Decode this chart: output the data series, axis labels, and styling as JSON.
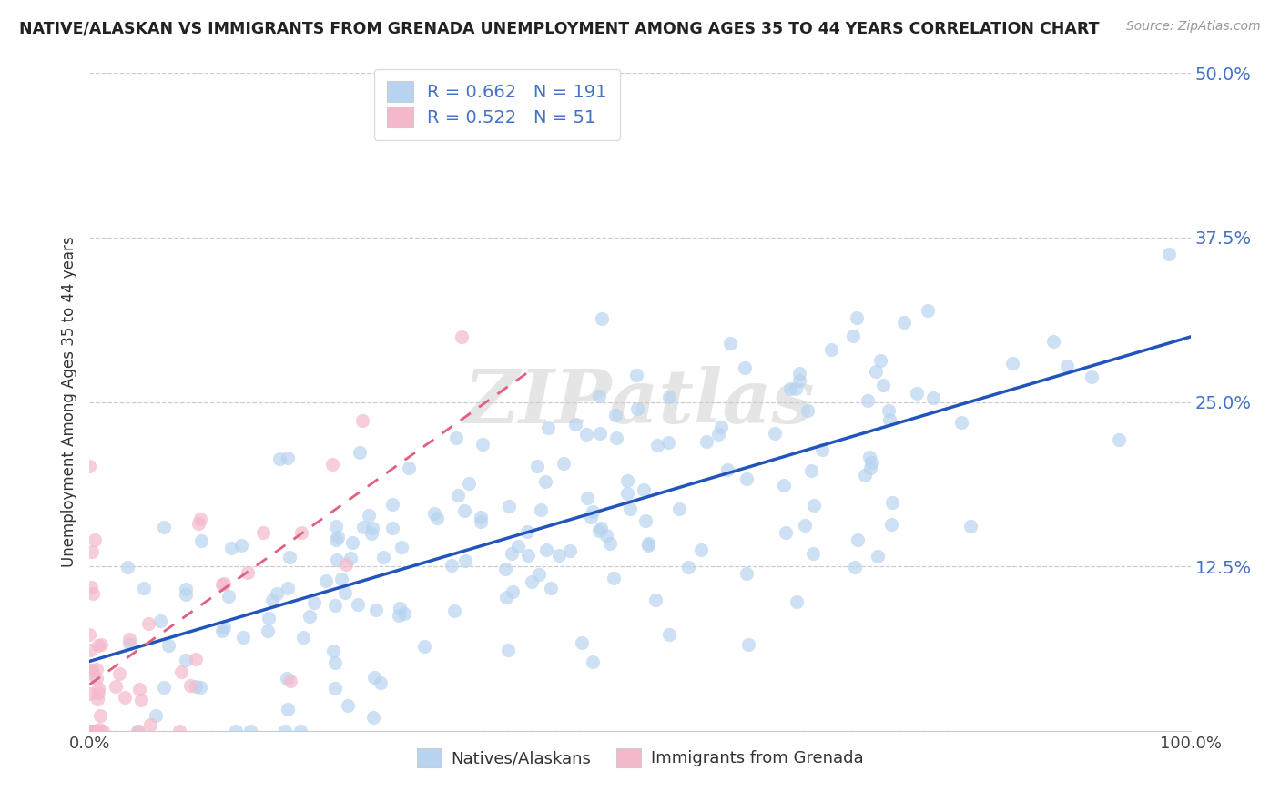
{
  "title": "NATIVE/ALASKAN VS IMMIGRANTS FROM GRENADA UNEMPLOYMENT AMONG AGES 35 TO 44 YEARS CORRELATION CHART",
  "source": "Source: ZipAtlas.com",
  "ylabel": "Unemployment Among Ages 35 to 44 years",
  "xlim": [
    0,
    1.0
  ],
  "ylim": [
    0,
    0.5
  ],
  "yticks": [
    0.0,
    0.125,
    0.25,
    0.375,
    0.5
  ],
  "ytick_labels": [
    "",
    "12.5%",
    "25.0%",
    "37.5%",
    "50.0%"
  ],
  "xticks": [
    0.0,
    1.0
  ],
  "xtick_labels": [
    "0.0%",
    "100.0%"
  ],
  "blue_R": 0.662,
  "blue_N": 191,
  "pink_R": 0.522,
  "pink_N": 51,
  "blue_color": "#b8d4f0",
  "pink_color": "#f5b8ca",
  "trend_blue": "#2255bb",
  "trend_pink": "#e06080",
  "tick_label_color": "#4472c4",
  "background_color": "#ffffff",
  "watermark": "ZIPatlas",
  "legend_label_blue": "Natives/Alaskans",
  "legend_label_pink": "Immigrants from Grenada"
}
